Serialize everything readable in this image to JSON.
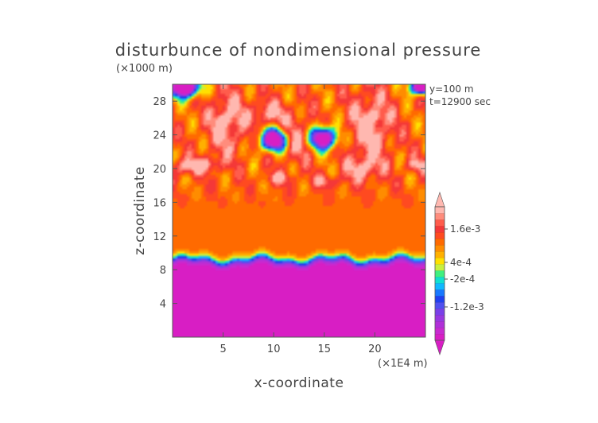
{
  "chart_data": {
    "type": "heatmap",
    "title": "disturbunce of nondimensional pressure",
    "xlabel": "x-coordinate",
    "ylabel": "z-coordinate",
    "x_unit": "(×1E4 m)",
    "y_unit": "(×1000 m)",
    "annotations": [
      "y=100 m",
      "t=12900 sec"
    ],
    "xlim": [
      0,
      25
    ],
    "ylim": [
      0,
      30
    ],
    "x_ticks": [
      5,
      10,
      15,
      20
    ],
    "y_ticks": [
      4,
      8,
      12,
      16,
      20,
      24,
      28
    ],
    "colorbar": {
      "labels": [
        {
          "text": "1.6e-3",
          "value": 0.0016
        },
        {
          "text": "4e-4",
          "value": 0.0004
        },
        {
          "text": "-2e-4",
          "value": -0.0002
        },
        {
          "text": "-1.2e-3",
          "value": -0.0012
        }
      ],
      "vmin": -0.0024,
      "vmax": 0.0024,
      "colors": [
        "#d81ec4",
        "#c82ad0",
        "#b030d8",
        "#9838e0",
        "#7a40e8",
        "#5050f0",
        "#2040f0",
        "#1878ff",
        "#10b8ff",
        "#10e0d0",
        "#40f080",
        "#c8f040",
        "#ffe000",
        "#ffb000",
        "#ff8c00",
        "#ff6a00",
        "#ff4a20",
        "#f43838",
        "#ff5c4c",
        "#ff8c7c",
        "#ffb8b0"
      ]
    },
    "field_description": [
      {
        "region": "z 0-8",
        "level": "strong negative (magenta)"
      },
      {
        "region": "z 8-10",
        "level": "sharp transition band"
      },
      {
        "region": "z 10-28",
        "level": "positive (light pink)"
      },
      {
        "region": "z 20-28",
        "level": "embedded highs and lows, minima near x=10,z=23.5 and x=15,z=23.5"
      }
    ]
  }
}
